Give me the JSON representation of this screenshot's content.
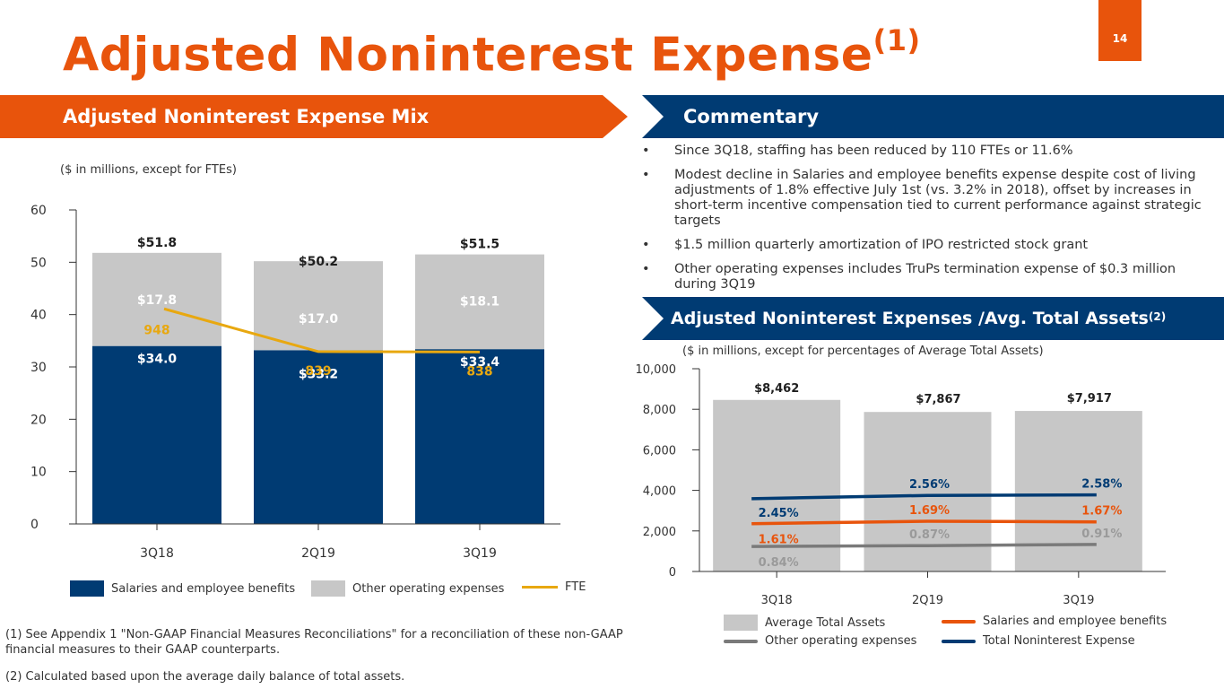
{
  "page_number": "14",
  "title": {
    "text": "Adjusted Noninterest Expense",
    "sup": "(1)"
  },
  "left_banner": "Adjusted Noninterest Expense Mix",
  "right_banner": "Commentary",
  "left_subtitle": "($ in millions, except for FTEs)",
  "commentary": [
    "Since 3Q18, staffing has been reduced by 110 FTEs or 11.6%",
    "Modest decline in Salaries and employee benefits expense despite cost of living adjustments of 1.8% effective July 1st (vs. 3.2% in 2018), offset by increases in short-term incentive compensation tied to current performance against strategic targets",
    "$1.5 million quarterly amortization of IPO restricted stock grant",
    "Other operating expenses includes TruPs termination expense of $0.3 million during 3Q19"
  ],
  "assets_banner": {
    "text": "Adjusted Noninterest Expenses /Avg. Total Assets",
    "sup": "(2)"
  },
  "right_subtitle": "($ in millions, except for percentages of Average Total Assets)",
  "colors": {
    "orange": "#e8540c",
    "navy": "#003b73",
    "gray": "#c7c7c7",
    "gold": "#e8a810",
    "darkgray": "#7a7a7a"
  },
  "chart_data": [
    {
      "type": "bar",
      "stacked": true,
      "categories": [
        "3Q18",
        "2Q19",
        "3Q19"
      ],
      "ylim": [
        0,
        60
      ],
      "yticks": [
        "0",
        "10",
        "20",
        "30",
        "40",
        "50",
        "60"
      ],
      "series": [
        {
          "name": "Salaries and employee benefits",
          "values": [
            34.0,
            33.2,
            33.4
          ],
          "labels": [
            "$34.0",
            "$33.2",
            "$33.4"
          ]
        },
        {
          "name": "Other operating expenses",
          "values": [
            17.8,
            17.0,
            18.1
          ],
          "labels": [
            "$17.8",
            "$17.0",
            "$18.1"
          ]
        }
      ],
      "totals": [
        "$51.8",
        "$50.2",
        "$51.5"
      ],
      "line": {
        "name": "FTE",
        "values": [
          948,
          839,
          838
        ],
        "labels": [
          "948",
          "839",
          "838"
        ],
        "ylim": [
          400,
          1200
        ]
      }
    },
    {
      "type": "bar",
      "categories": [
        "3Q18",
        "2Q19",
        "3Q19"
      ],
      "ylim": [
        0,
        10000
      ],
      "yticks": [
        "0",
        "2,000",
        "4,000",
        "6,000",
        "8,000",
        "10,000"
      ],
      "bars": {
        "name": "Average Total Assets",
        "values": [
          8462,
          7867,
          7917
        ],
        "labels": [
          "$8,462",
          "$7,867",
          "$7,917"
        ]
      },
      "lines": [
        {
          "name": "Total Noninterest Expense",
          "values": [
            2.45,
            2.56,
            2.58
          ],
          "labels": [
            "2.45%",
            "2.56%",
            "2.58%"
          ]
        },
        {
          "name": "Salaries and employee benefits",
          "values": [
            1.61,
            1.69,
            1.67
          ],
          "labels": [
            "1.61%",
            "1.69%",
            "1.67%"
          ]
        },
        {
          "name": "Other operating expenses",
          "values": [
            0.84,
            0.87,
            0.91
          ],
          "labels": [
            "0.84%",
            "0.87%",
            "0.91%"
          ]
        }
      ]
    }
  ],
  "footnotes": [
    "(1) See Appendix 1 \"Non-GAAP Financial Measures Reconciliations\" for a reconciliation of these non-GAAP financial measures to their GAAP counterparts.",
    "(2) Calculated based upon the average daily balance of total assets."
  ]
}
